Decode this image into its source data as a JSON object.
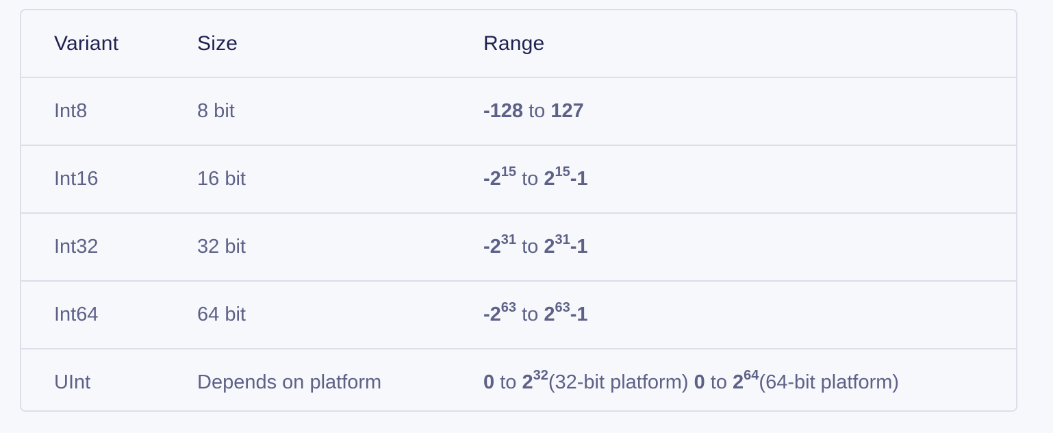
{
  "table": {
    "headers": [
      "Variant",
      "Size",
      "Range"
    ],
    "rows": [
      {
        "variant": "Int8",
        "size": "8 bit",
        "range": {
          "min_base": "-128",
          "min_exp": "",
          "to": "to",
          "max_base": "127",
          "max_exp": "",
          "max_suffix": ""
        }
      },
      {
        "variant": "Int16",
        "size": "16 bit",
        "range": {
          "min_base": "-2",
          "min_exp": "15",
          "to": "to",
          "max_base": "2",
          "max_exp": "15",
          "max_suffix": "-1"
        }
      },
      {
        "variant": "Int32",
        "size": "32 bit",
        "range": {
          "min_base": "-2",
          "min_exp": "31",
          "to": "to",
          "max_base": "2",
          "max_exp": "31",
          "max_suffix": "-1"
        }
      },
      {
        "variant": "Int64",
        "size": "64 bit",
        "range": {
          "min_base": "-2",
          "min_exp": "63",
          "to": "to",
          "max_base": "2",
          "max_exp": "63",
          "max_suffix": "-1"
        }
      },
      {
        "variant": "UInt",
        "size": "Depends on platform",
        "range": {
          "a_min": "0",
          "a_to": "to",
          "a_max_base": "2",
          "a_max_exp": "32",
          "a_note": "(32-bit platform)",
          "b_min": "0",
          "b_to": "to",
          "b_max_base": "2",
          "b_max_exp": "64",
          "b_note": "(64-bit platform)"
        }
      }
    ]
  }
}
